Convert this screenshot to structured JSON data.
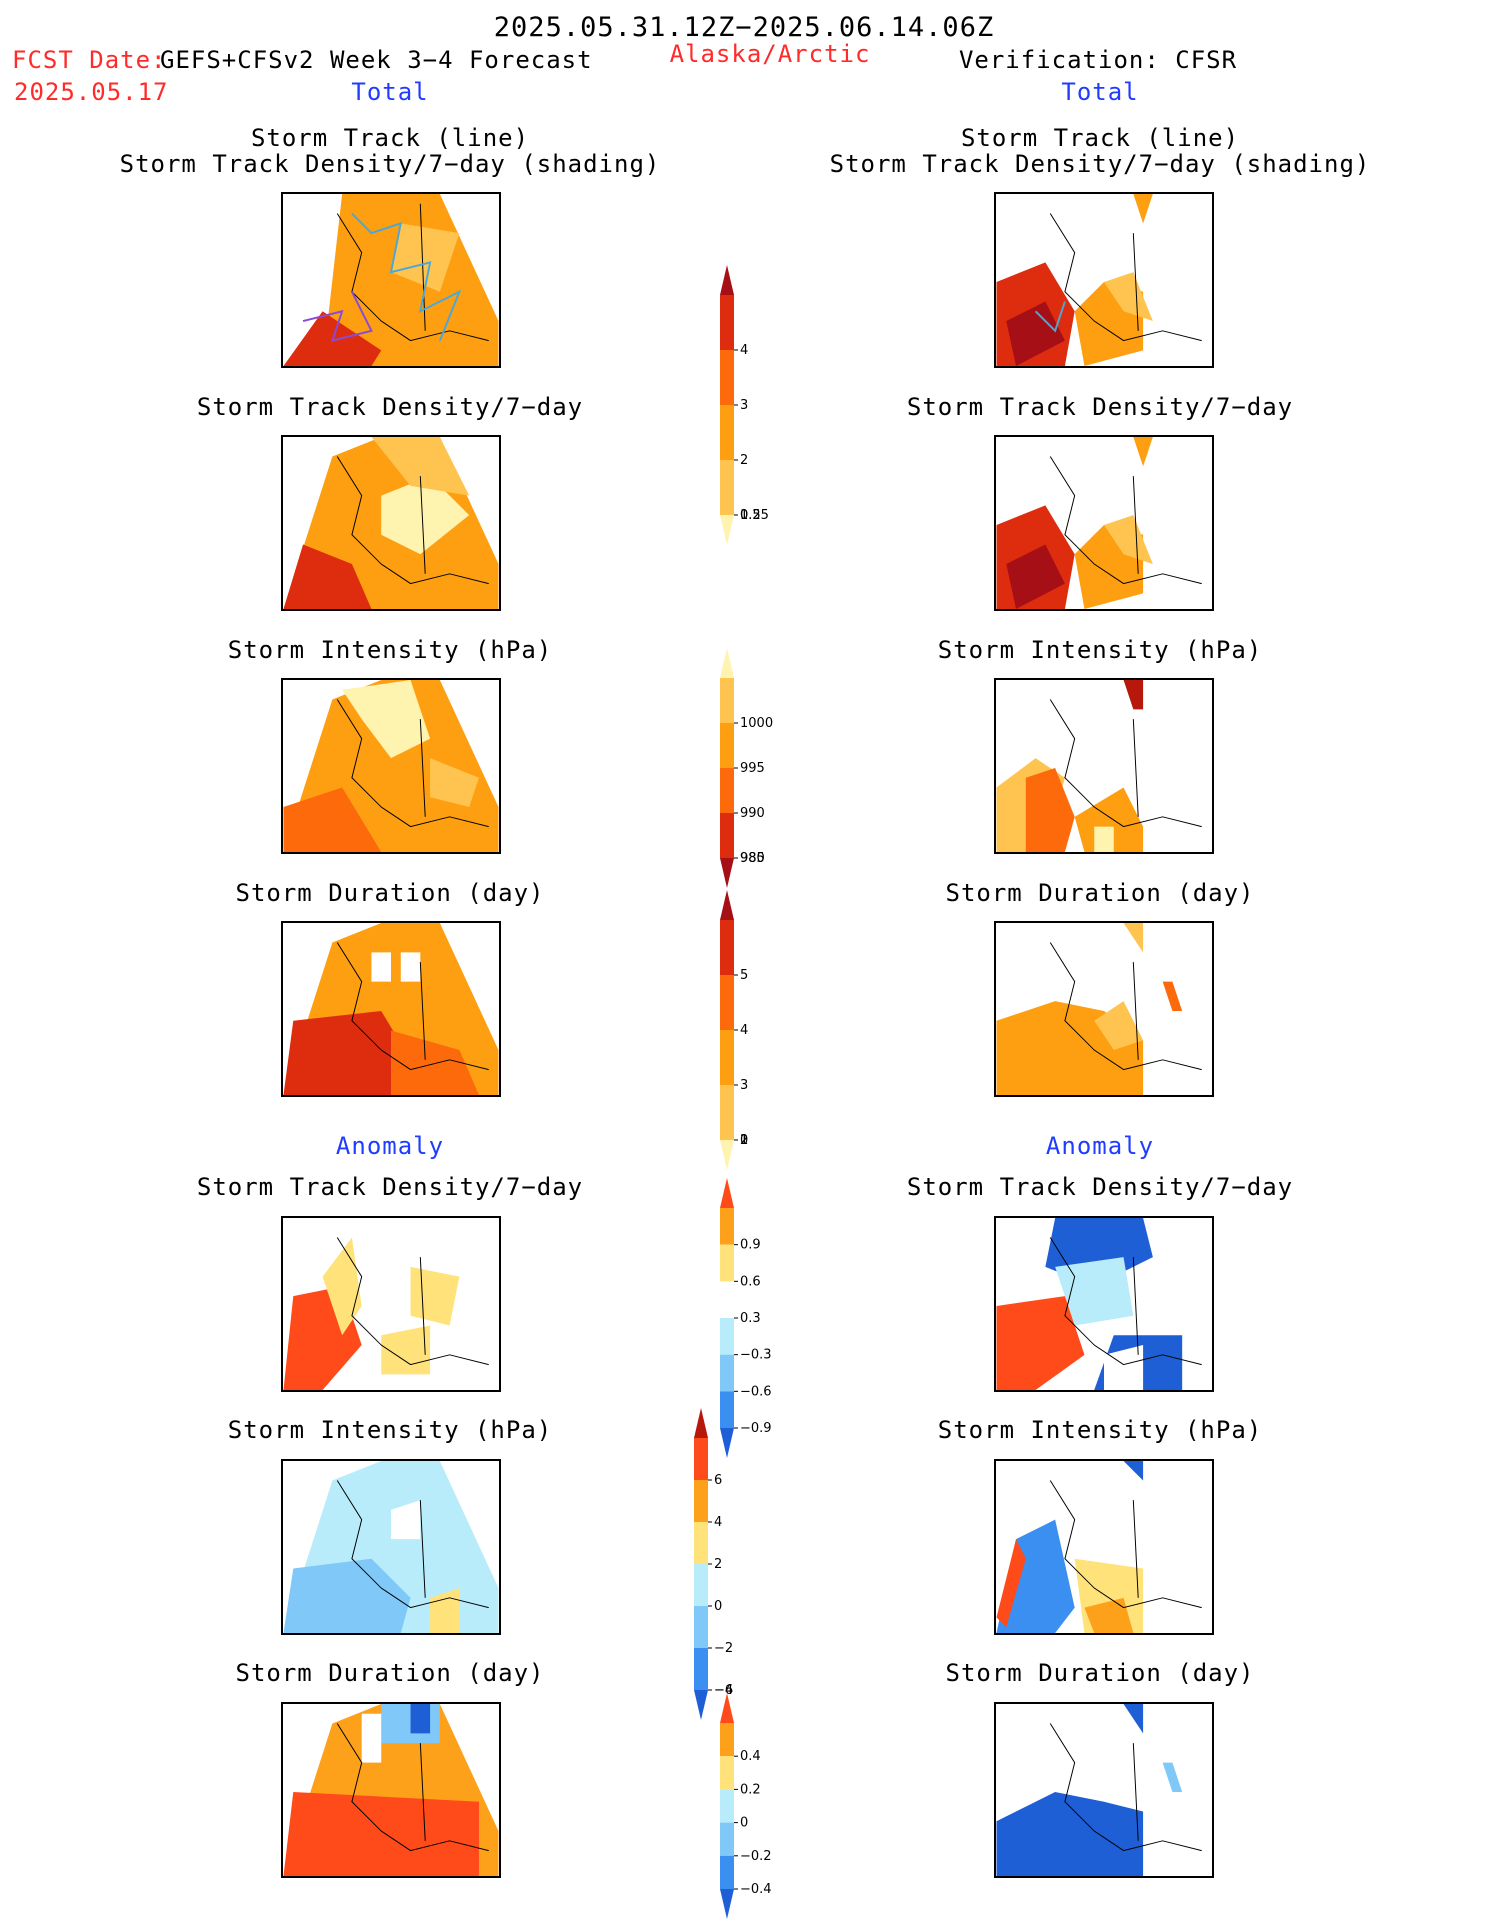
{
  "header": {
    "period": "2025.05.31.12Z−2025.06.14.06Z",
    "fcst_label": "FCST Date:",
    "fcst_model": "GEFS+CFSv2 Week 3−4 Forecast",
    "fcst_date": "2025.05.17",
    "region": "Alaska/Arctic",
    "verification": "Verification: CFSR",
    "left_total": "Total",
    "right_total": "Total"
  },
  "anomaly_heading": "Anomaly",
  "panel_titles": {
    "track_line": "Storm Track (line)",
    "track_shading": "Storm Track Density/7−day (shading)",
    "density": "Storm Track Density/7−day",
    "intensity": "Storm Intensity (hPa)",
    "duration": "Storm Duration (day)"
  },
  "colorbars": {
    "density_total": {
      "ticks": [
        "4",
        "3",
        "2",
        "1",
        "0.5",
        "0.25"
      ],
      "colors": [
        "#a50f15",
        "#de2d0e",
        "#fd6a0b",
        "#fd9f10",
        "#fec44f",
        "#fff3b0"
      ]
    },
    "intensity_total": {
      "ticks": [
        "1000",
        "995",
        "990",
        "985",
        "980"
      ],
      "colors": [
        "#fff3b0",
        "#fec44f",
        "#fd9f10",
        "#fd6a0b",
        "#de2d0e",
        "#a50f15"
      ]
    },
    "duration_total": {
      "ticks": [
        "5",
        "4",
        "3",
        "2",
        "1",
        "0"
      ],
      "colors": [
        "#a50f15",
        "#de2d0e",
        "#fd6a0b",
        "#fd9f10",
        "#fec44f",
        "#fff3b0"
      ]
    },
    "density_anom": {
      "ticks": [
        "0.9",
        "0.6",
        "0.3",
        "−0.3",
        "−0.6",
        "−0.9"
      ],
      "colors": [
        "#ff4a1a",
        "#fda01a",
        "#ffe37a",
        "#ffffff",
        "#b8ecfa",
        "#7fc8f8",
        "#3b8ff0",
        "#1f5fd6"
      ]
    },
    "intensity_anom": {
      "ticks": [
        "6",
        "4",
        "2",
        "0",
        "−2",
        "−4",
        "−6"
      ],
      "colors": [
        "#b8180c",
        "#ff4a1a",
        "#fda01a",
        "#ffe37a",
        "#b8ecfa",
        "#7fc8f8",
        "#3b8ff0",
        "#1f5fd6"
      ]
    },
    "duration_anom": {
      "ticks": [
        "0.4",
        "0.2",
        "0",
        "−0.2",
        "−0.4"
      ],
      "colors": [
        "#ff4a1a",
        "#fda01a",
        "#ffe37a",
        "#b8ecfa",
        "#7fc8f8",
        "#3b8ff0",
        "#1f5fd6"
      ]
    }
  }
}
